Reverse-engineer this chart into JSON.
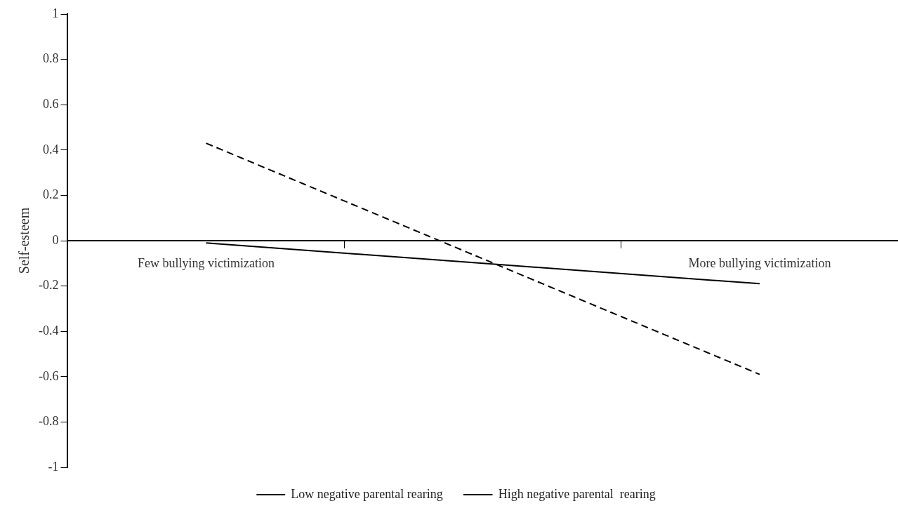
{
  "chart_data": {
    "type": "line",
    "ylabel": "Self-esteem",
    "categories": [
      "Few bullying victimization",
      null,
      "More bullying victimization"
    ],
    "series": [
      {
        "name": "Low negative parental rearing",
        "color": "#000000",
        "line_style": "dashed",
        "values": [
          0.43,
          -0.08,
          -0.59
        ]
      },
      {
        "name": "High negative parental  rearing",
        "color": "#000000",
        "line_style": "solid",
        "values": [
          -0.01,
          -0.1,
          -0.19
        ]
      }
    ],
    "ylim": [
      -1,
      1
    ],
    "yticks": [
      -1,
      -0.8,
      -0.6,
      -0.4,
      -0.2,
      0,
      0.2,
      0.4,
      0.6,
      0.8,
      1
    ],
    "grid": false,
    "legend": "bottom",
    "marker": "none"
  }
}
